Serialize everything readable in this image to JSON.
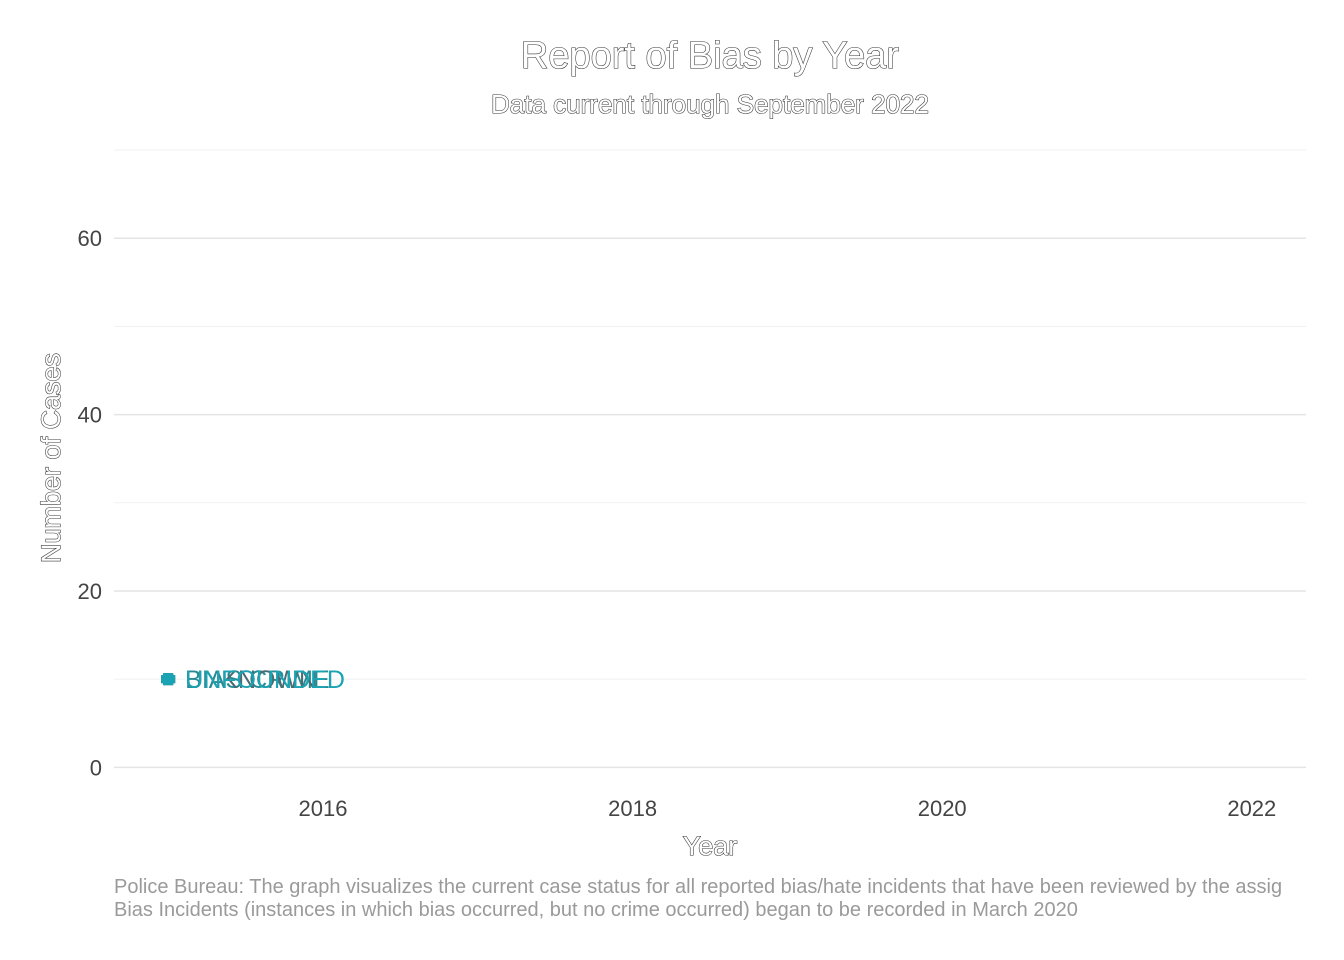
{
  "chart_data": {
    "type": "line",
    "title": "Report of Bias by Year",
    "subtitle": "Data current through September 2022",
    "xlabel": "Year",
    "ylabel": "Number of Cases",
    "xlim": [
      2014.65,
      2022.35
    ],
    "ylim": [
      -2,
      70
    ],
    "x_ticks": [
      2016,
      2018,
      2020,
      2022
    ],
    "y_ticks": [
      0,
      20,
      40,
      60
    ],
    "y_minor_ticks": [
      10,
      30,
      50,
      70
    ],
    "grid": true,
    "legend": "none",
    "series": [
      {
        "name": "BIAS CRIME",
        "color": "#2a8a94",
        "points": [
          {
            "x": 2015,
            "y": 10
          }
        ]
      },
      {
        "name": "UNKNOWN",
        "color": "#4a6b72",
        "points": [
          {
            "x": 2015,
            "y": 10
          }
        ]
      },
      {
        "name": "UNFOUNDED",
        "color": "#1aa3b3",
        "points": [
          {
            "x": 2015,
            "y": 10
          }
        ]
      }
    ],
    "caption_lines": [
      "Police Bureau: The graph visualizes the current case status for all reported bias/hate incidents that have been reviewed by the assig",
      "Bias Incidents (instances in which bias occurred, but no crime occurred) began to be recorded in March 2020"
    ]
  }
}
